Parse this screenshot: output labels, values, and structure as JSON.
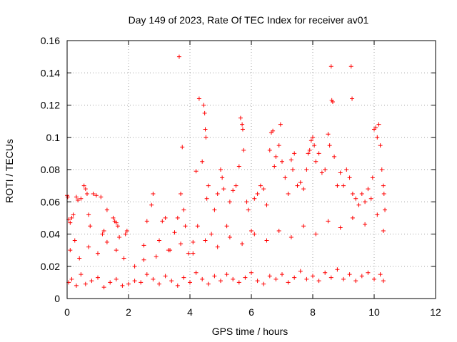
{
  "chart_data": {
    "type": "scatter",
    "title": "Day 149 of 2023, Rate Of TEC Index for receiver av01",
    "xlabel": "GPS time / hours",
    "ylabel": "ROTI / TECUs",
    "xlim": [
      0,
      12
    ],
    "ylim": [
      0,
      0.16
    ],
    "x_ticks": [
      0,
      2,
      4,
      6,
      8,
      10,
      12
    ],
    "y_ticks": [
      0,
      0.02,
      0.04,
      0.06,
      0.08,
      0.1,
      0.12,
      0.14,
      0.16
    ],
    "x_tick_labels": [
      "0",
      "2",
      "4",
      "6",
      "8",
      "10",
      "12"
    ],
    "y_tick_labels": [
      "0",
      "0.02",
      "0.04",
      "0.06",
      "0.08",
      "0.1",
      "0.12",
      "0.14",
      "0.16"
    ],
    "grid": true,
    "marker": "+",
    "marker_color": "#ff0000",
    "series": [
      {
        "name": "ROTI",
        "points": [
          [
            0.0,
            0.064
          ],
          [
            0.02,
            0.063
          ],
          [
            0.05,
            0.049
          ],
          [
            0.1,
            0.047
          ],
          [
            0.15,
            0.05
          ],
          [
            0.2,
            0.052
          ],
          [
            0.25,
            0.036
          ],
          [
            0.3,
            0.063
          ],
          [
            0.35,
            0.061
          ],
          [
            0.45,
            0.062
          ],
          [
            0.55,
            0.07
          ],
          [
            0.6,
            0.068
          ],
          [
            0.65,
            0.065
          ],
          [
            0.7,
            0.052
          ],
          [
            0.75,
            0.045
          ],
          [
            0.85,
            0.065
          ],
          [
            0.95,
            0.064
          ],
          [
            1.1,
            0.063
          ],
          [
            1.15,
            0.04
          ],
          [
            1.2,
            0.042
          ],
          [
            1.3,
            0.055
          ],
          [
            1.5,
            0.05
          ],
          [
            1.55,
            0.048
          ],
          [
            1.6,
            0.047
          ],
          [
            1.65,
            0.045
          ],
          [
            1.7,
            0.038
          ],
          [
            1.85,
            0.025
          ],
          [
            1.9,
            0.04
          ],
          [
            1.95,
            0.042
          ],
          [
            2.5,
            0.033
          ],
          [
            2.6,
            0.048
          ],
          [
            2.75,
            0.058
          ],
          [
            2.8,
            0.065
          ],
          [
            3.0,
            0.036
          ],
          [
            3.1,
            0.048
          ],
          [
            3.2,
            0.05
          ],
          [
            3.35,
            0.03
          ],
          [
            3.5,
            0.041
          ],
          [
            3.6,
            0.05
          ],
          [
            3.65,
            0.15
          ],
          [
            3.7,
            0.065
          ],
          [
            3.75,
            0.094
          ],
          [
            3.8,
            0.055
          ],
          [
            3.85,
            0.045
          ],
          [
            3.95,
            0.028
          ],
          [
            4.1,
            0.035
          ],
          [
            4.2,
            0.079
          ],
          [
            4.25,
            0.045
          ],
          [
            4.3,
            0.124
          ],
          [
            4.4,
            0.085
          ],
          [
            4.45,
            0.12
          ],
          [
            4.48,
            0.115
          ],
          [
            4.5,
            0.105
          ],
          [
            4.52,
            0.1
          ],
          [
            4.55,
            0.062
          ],
          [
            4.6,
            0.07
          ],
          [
            4.7,
            0.04
          ],
          [
            4.8,
            0.055
          ],
          [
            4.9,
            0.065
          ],
          [
            5.0,
            0.08
          ],
          [
            5.05,
            0.075
          ],
          [
            5.1,
            0.068
          ],
          [
            5.2,
            0.045
          ],
          [
            5.3,
            0.06
          ],
          [
            5.4,
            0.067
          ],
          [
            5.5,
            0.07
          ],
          [
            5.6,
            0.082
          ],
          [
            5.65,
            0.112
          ],
          [
            5.7,
            0.108
          ],
          [
            5.72,
            0.105
          ],
          [
            5.75,
            0.092
          ],
          [
            5.85,
            0.06
          ],
          [
            5.9,
            0.055
          ],
          [
            6.0,
            0.042
          ],
          [
            6.1,
            0.062
          ],
          [
            6.2,
            0.065
          ],
          [
            6.3,
            0.07
          ],
          [
            6.4,
            0.068
          ],
          [
            6.5,
            0.058
          ],
          [
            6.6,
            0.092
          ],
          [
            6.65,
            0.103
          ],
          [
            6.7,
            0.104
          ],
          [
            6.75,
            0.082
          ],
          [
            6.8,
            0.088
          ],
          [
            6.9,
            0.095
          ],
          [
            6.95,
            0.108
          ],
          [
            7.0,
            0.085
          ],
          [
            7.1,
            0.075
          ],
          [
            7.2,
            0.065
          ],
          [
            7.3,
            0.086
          ],
          [
            7.35,
            0.08
          ],
          [
            7.4,
            0.09
          ],
          [
            7.5,
            0.07
          ],
          [
            7.6,
            0.072
          ],
          [
            7.7,
            0.068
          ],
          [
            7.8,
            0.08
          ],
          [
            7.85,
            0.09
          ],
          [
            7.9,
            0.092
          ],
          [
            7.95,
            0.098
          ],
          [
            8.0,
            0.1
          ],
          [
            8.05,
            0.095
          ],
          [
            8.1,
            0.085
          ],
          [
            8.2,
            0.09
          ],
          [
            8.3,
            0.078
          ],
          [
            8.4,
            0.08
          ],
          [
            8.5,
            0.102
          ],
          [
            8.55,
            0.095
          ],
          [
            8.6,
            0.144
          ],
          [
            8.62,
            0.123
          ],
          [
            8.65,
            0.122
          ],
          [
            8.7,
            0.088
          ],
          [
            8.8,
            0.07
          ],
          [
            8.9,
            0.078
          ],
          [
            9.0,
            0.07
          ],
          [
            9.1,
            0.08
          ],
          [
            9.2,
            0.075
          ],
          [
            9.25,
            0.144
          ],
          [
            9.28,
            0.124
          ],
          [
            9.3,
            0.065
          ],
          [
            9.4,
            0.062
          ],
          [
            9.5,
            0.058
          ],
          [
            9.6,
            0.065
          ],
          [
            9.7,
            0.06
          ],
          [
            9.8,
            0.068
          ],
          [
            9.9,
            0.062
          ],
          [
            9.95,
            0.075
          ],
          [
            10.0,
            0.105
          ],
          [
            10.05,
            0.106
          ],
          [
            10.1,
            0.1
          ],
          [
            10.15,
            0.108
          ],
          [
            10.2,
            0.095
          ],
          [
            10.25,
            0.08
          ],
          [
            10.3,
            0.07
          ],
          [
            10.32,
            0.065
          ],
          [
            10.35,
            0.055
          ],
          [
            0.05,
            0.01
          ],
          [
            0.15,
            0.012
          ],
          [
            0.3,
            0.008
          ],
          [
            0.45,
            0.015
          ],
          [
            0.6,
            0.009
          ],
          [
            0.8,
            0.011
          ],
          [
            1.0,
            0.013
          ],
          [
            1.2,
            0.007
          ],
          [
            1.4,
            0.01
          ],
          [
            1.6,
            0.012
          ],
          [
            1.8,
            0.008
          ],
          [
            2.0,
            0.009
          ],
          [
            2.2,
            0.011
          ],
          [
            2.4,
            0.01
          ],
          [
            2.6,
            0.015
          ],
          [
            2.8,
            0.012
          ],
          [
            3.0,
            0.009
          ],
          [
            3.2,
            0.014
          ],
          [
            3.4,
            0.011
          ],
          [
            3.6,
            0.008
          ],
          [
            3.8,
            0.013
          ],
          [
            4.0,
            0.01
          ],
          [
            4.2,
            0.016
          ],
          [
            4.4,
            0.012
          ],
          [
            4.6,
            0.009
          ],
          [
            4.8,
            0.014
          ],
          [
            5.0,
            0.011
          ],
          [
            5.2,
            0.015
          ],
          [
            5.4,
            0.012
          ],
          [
            5.6,
            0.01
          ],
          [
            5.8,
            0.013
          ],
          [
            6.0,
            0.016
          ],
          [
            6.2,
            0.011
          ],
          [
            6.4,
            0.009
          ],
          [
            6.6,
            0.014
          ],
          [
            6.8,
            0.012
          ],
          [
            7.0,
            0.015
          ],
          [
            7.2,
            0.01
          ],
          [
            7.4,
            0.013
          ],
          [
            7.6,
            0.017
          ],
          [
            7.8,
            0.012
          ],
          [
            8.0,
            0.014
          ],
          [
            8.2,
            0.011
          ],
          [
            8.4,
            0.016
          ],
          [
            8.6,
            0.013
          ],
          [
            8.8,
            0.018
          ],
          [
            9.0,
            0.012
          ],
          [
            9.2,
            0.015
          ],
          [
            9.4,
            0.011
          ],
          [
            9.6,
            0.014
          ],
          [
            9.8,
            0.016
          ],
          [
            10.0,
            0.012
          ],
          [
            10.2,
            0.015
          ],
          [
            10.3,
            0.011
          ],
          [
            0.1,
            0.03
          ],
          [
            0.4,
            0.025
          ],
          [
            0.7,
            0.032
          ],
          [
            1.0,
            0.028
          ],
          [
            1.3,
            0.035
          ],
          [
            1.6,
            0.03
          ],
          [
            2.2,
            0.02
          ],
          [
            2.5,
            0.024
          ],
          [
            2.9,
            0.026
          ],
          [
            3.3,
            0.03
          ],
          [
            3.7,
            0.034
          ],
          [
            4.1,
            0.028
          ],
          [
            4.5,
            0.036
          ],
          [
            4.9,
            0.032
          ],
          [
            5.3,
            0.038
          ],
          [
            5.7,
            0.034
          ],
          [
            6.1,
            0.04
          ],
          [
            6.5,
            0.036
          ],
          [
            6.9,
            0.042
          ],
          [
            7.3,
            0.038
          ],
          [
            7.7,
            0.045
          ],
          [
            8.1,
            0.04
          ],
          [
            8.5,
            0.048
          ],
          [
            8.9,
            0.044
          ],
          [
            9.3,
            0.05
          ],
          [
            9.7,
            0.046
          ],
          [
            10.1,
            0.052
          ],
          [
            10.3,
            0.042
          ]
        ]
      }
    ]
  }
}
